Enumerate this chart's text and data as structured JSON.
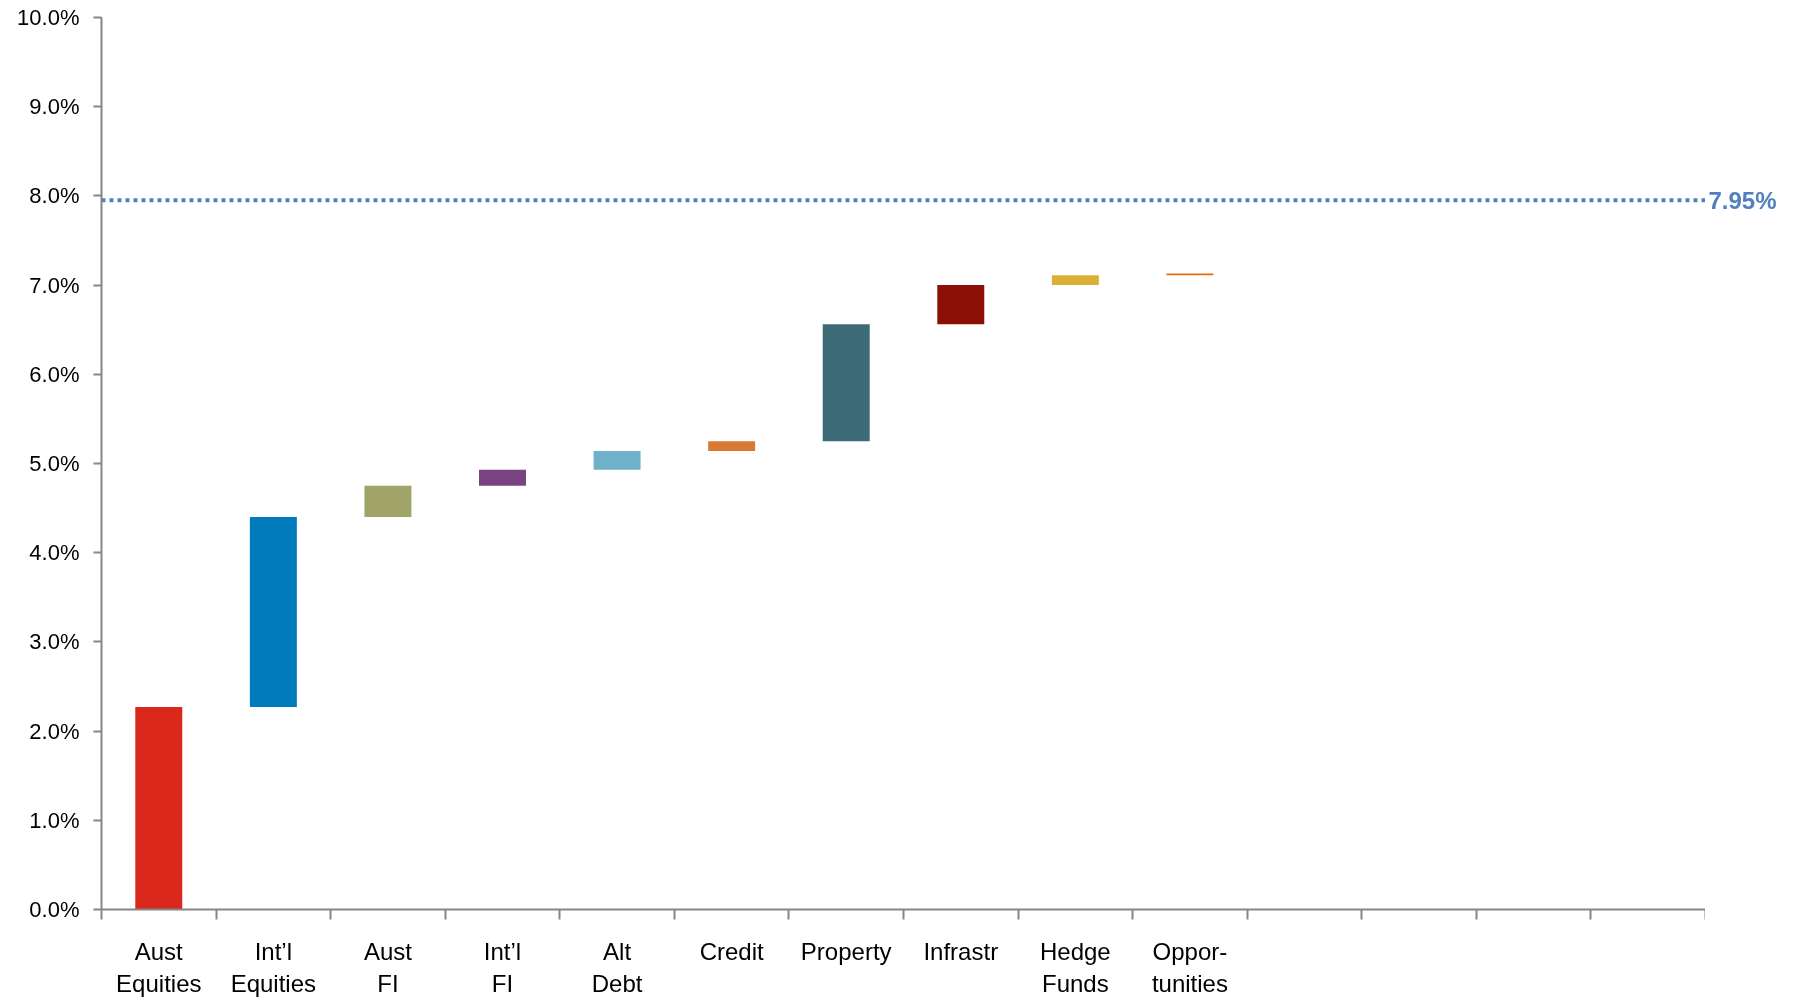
{
  "chart_data": {
    "type": "bar",
    "categories": [
      "Aust\nEquities",
      "Int’l\nEquities",
      "Aust\nFI",
      "Int’l\nFI",
      "Alt\nDebt",
      "Credit",
      "Property",
      "Infrastr",
      "Hedge\nFunds",
      "Oppor-\ntunities",
      null,
      null,
      null,
      null
    ],
    "values": [
      2.27,
      2.13,
      0.35,
      0.18,
      0.21,
      0.11,
      1.31,
      0.44,
      0.11,
      0.02,
      null,
      null,
      null,
      null
    ],
    "base": [
      0,
      2.27,
      4.4,
      4.75,
      4.93,
      5.14,
      5.25,
      6.56,
      7.0,
      7.11,
      null,
      null,
      null,
      null
    ],
    "colors": [
      "#da291c",
      "#007bbb",
      "#a0a468",
      "#7b4282",
      "#6fb1c8",
      "#d97934",
      "#3d6a77",
      "#8b0f04",
      "#daaf33",
      "#e36c0a",
      null,
      null,
      null,
      null
    ],
    "ylim": [
      0,
      10
    ],
    "yticks": [
      {
        "value": 0,
        "label": "0.0%"
      },
      {
        "value": 1,
        "label": "1.0%"
      },
      {
        "value": 2,
        "label": "2.0%"
      },
      {
        "value": 3,
        "label": "3.0%"
      },
      {
        "value": 4,
        "label": "4.0%"
      },
      {
        "value": 5,
        "label": "5.0%"
      },
      {
        "value": 6,
        "label": "6.0%"
      },
      {
        "value": 7,
        "label": "7.0%"
      },
      {
        "value": 8,
        "label": "8.0%"
      },
      {
        "value": 9,
        "label": "9.0%"
      },
      {
        "value": 10,
        "label": "10.0%"
      }
    ],
    "ref_lines": [
      {
        "axis": "y",
        "value": 7.95,
        "label": "7.95%",
        "color": "#4f81bd",
        "line_style": "dotted"
      }
    ]
  }
}
